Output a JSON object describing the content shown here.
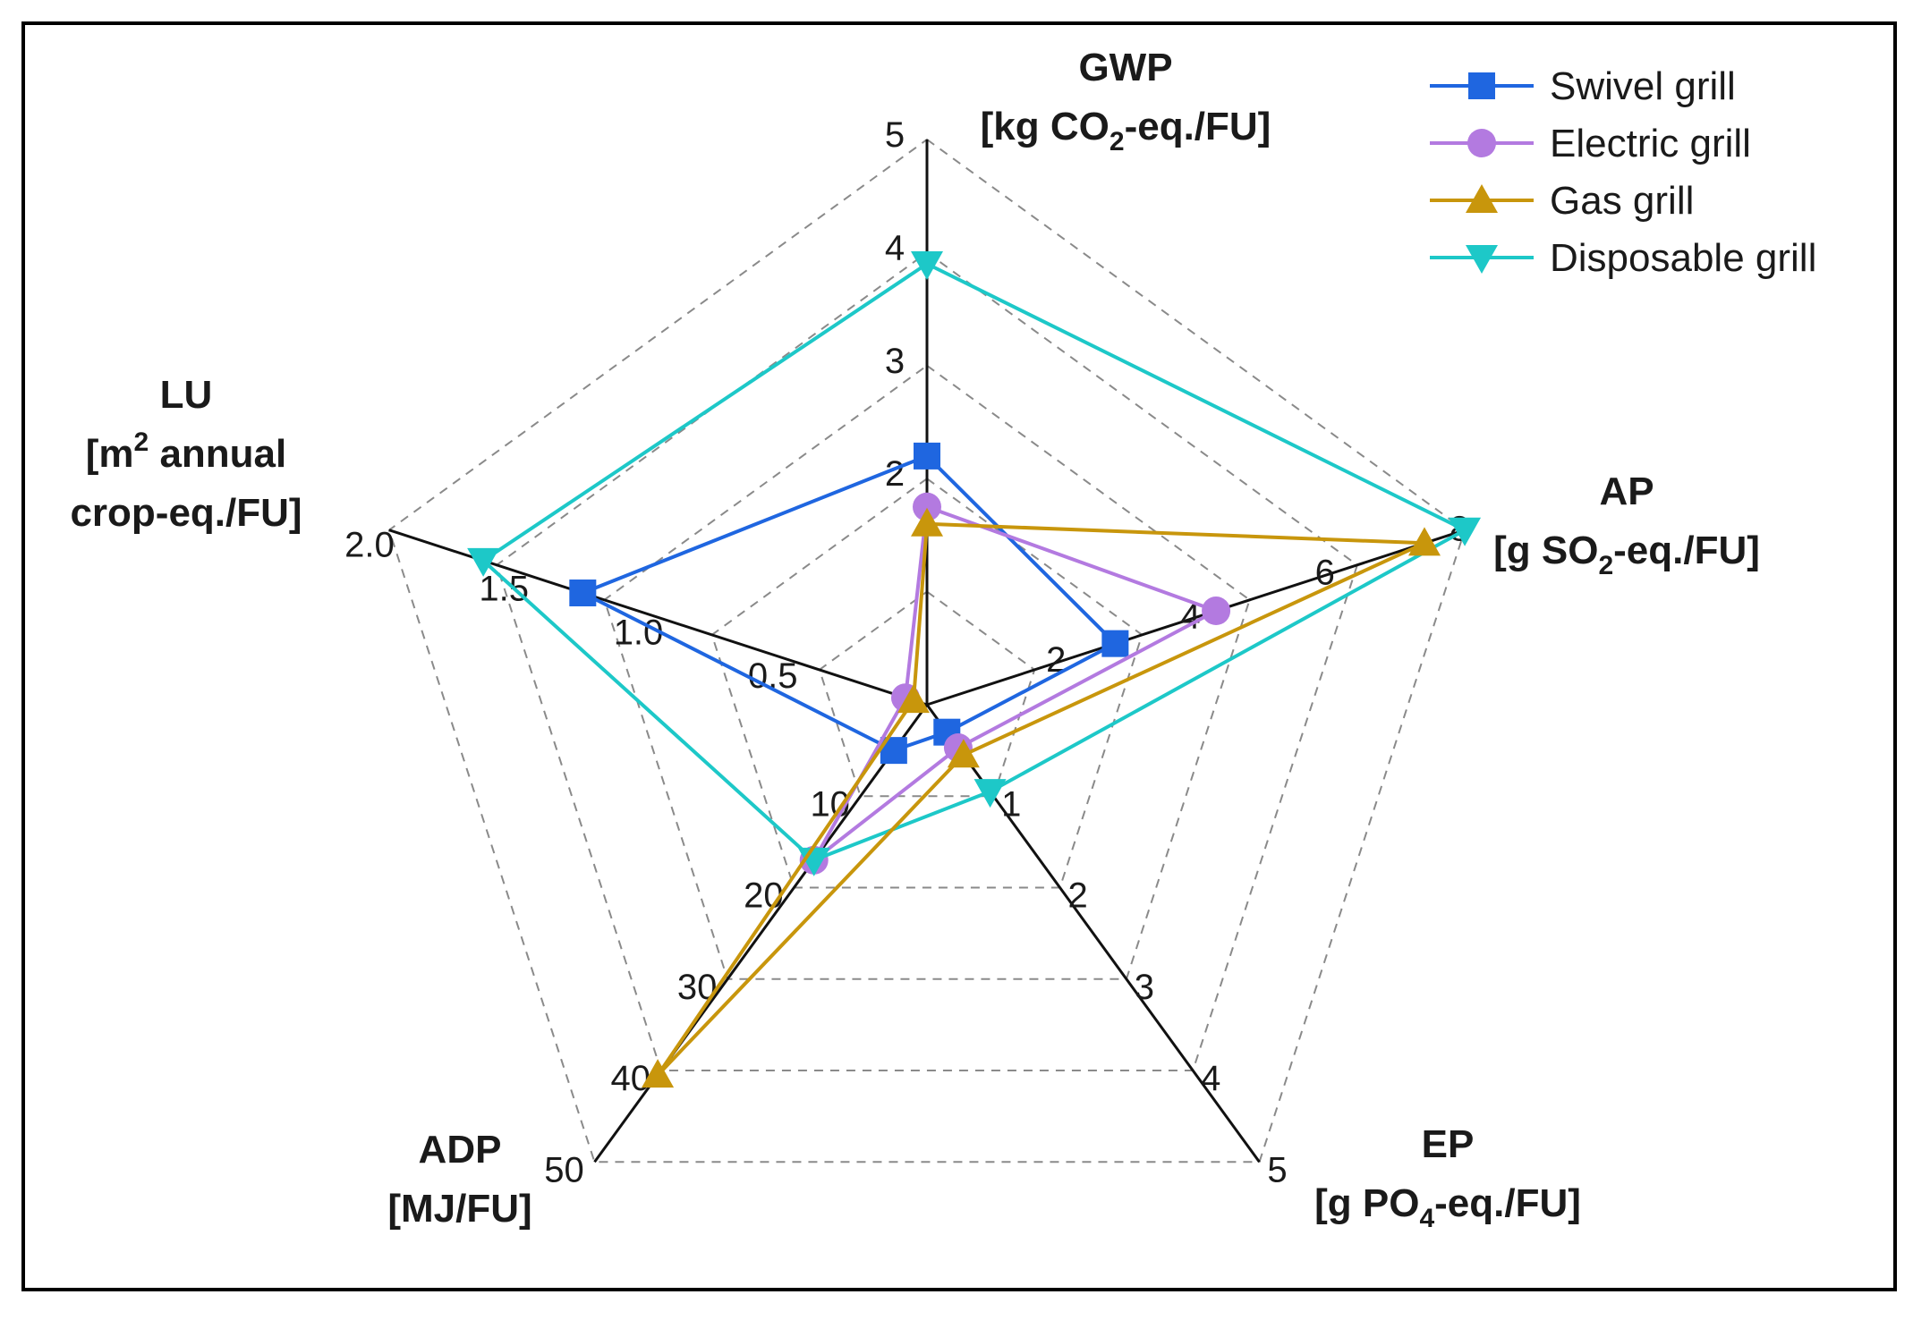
{
  "chart_data": {
    "type": "radar",
    "axes": [
      {
        "id": "gwp",
        "label_lines": [
          "GWP",
          "[kg CO2-eq./FU]"
        ],
        "max": 5,
        "ticks": [
          "2",
          "3",
          "4",
          "5"
        ],
        "tick_values": [
          2,
          3,
          4,
          5
        ]
      },
      {
        "id": "ap",
        "label_lines": [
          "AP",
          "[g SO2-eq./FU]"
        ],
        "max": 8,
        "ticks": [
          "2",
          "4",
          "6",
          "8"
        ],
        "tick_values": [
          2,
          4,
          6,
          8
        ]
      },
      {
        "id": "ep",
        "label_lines": [
          "EP",
          "[g PO4-eq./FU]"
        ],
        "max": 5,
        "ticks": [
          "1",
          "2",
          "3",
          "4",
          "5"
        ],
        "tick_values": [
          1,
          2,
          3,
          4,
          5
        ]
      },
      {
        "id": "adp",
        "label_lines": [
          "ADP",
          "[MJ/FU]"
        ],
        "max": 50,
        "ticks": [
          "10",
          "20",
          "30",
          "40",
          "50"
        ],
        "tick_values": [
          10,
          20,
          30,
          40,
          50
        ]
      },
      {
        "id": "lu",
        "label_lines": [
          "LU",
          "[m2 annual",
          "crop-eq./FU]"
        ],
        "max": 2.0,
        "ticks": [
          "0.5",
          "1.0",
          "1.5",
          "2.0"
        ],
        "tick_values": [
          0.5,
          1.0,
          1.5,
          2.0
        ]
      }
    ],
    "series": [
      {
        "name": "Swivel grill",
        "color": "#1f66e0",
        "marker": "square",
        "values": [
          2.2,
          2.8,
          0.3,
          5.0,
          1.28
        ]
      },
      {
        "name": "Electric grill",
        "color": "#b37ae0",
        "marker": "circle",
        "values": [
          1.75,
          4.3,
          0.47,
          17.0,
          0.08
        ]
      },
      {
        "name": "Gas grill",
        "color": "#c8960c",
        "marker": "triangle-up",
        "values": [
          1.6,
          7.4,
          0.55,
          40.5,
          0.05
        ]
      },
      {
        "name": "Disposable grill",
        "color": "#1dc8c8",
        "marker": "triangle-down",
        "values": [
          3.9,
          8.0,
          0.95,
          17.0,
          1.65
        ]
      }
    ]
  }
}
